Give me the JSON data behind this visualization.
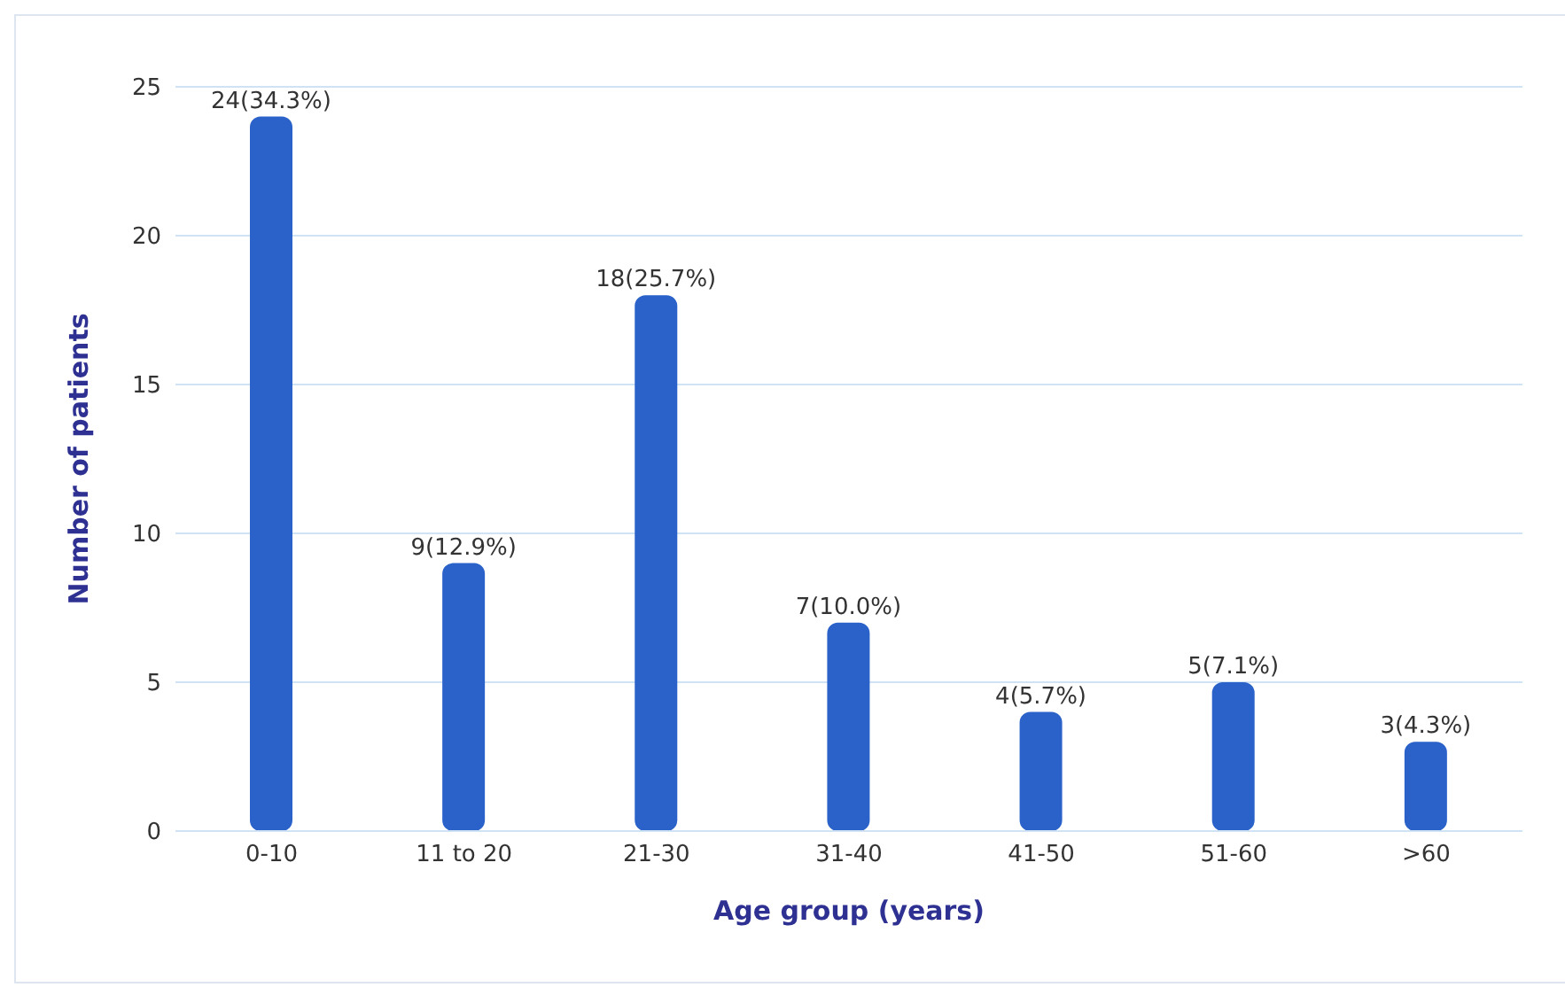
{
  "chart_data": {
    "type": "bar",
    "xlabel": "Age group (years)",
    "ylabel": "Number of patients",
    "categories": [
      "0-10",
      "11 to 20",
      "21-30",
      "31-40",
      "41-50",
      "51-60",
      ">60"
    ],
    "values": [
      24,
      9,
      18,
      7,
      4,
      5,
      3
    ],
    "value_labels": [
      "24(34.3%)",
      "9(12.9%)",
      "18(25.7%)",
      "7(10.0%)",
      "4(5.7%)",
      "5(7.1%)",
      "3(4.3%)"
    ],
    "color": "#2a62c9",
    "ylim": [
      0,
      25
    ],
    "yticks": [
      0,
      5,
      10,
      15,
      20,
      25
    ],
    "grid": "y"
  }
}
